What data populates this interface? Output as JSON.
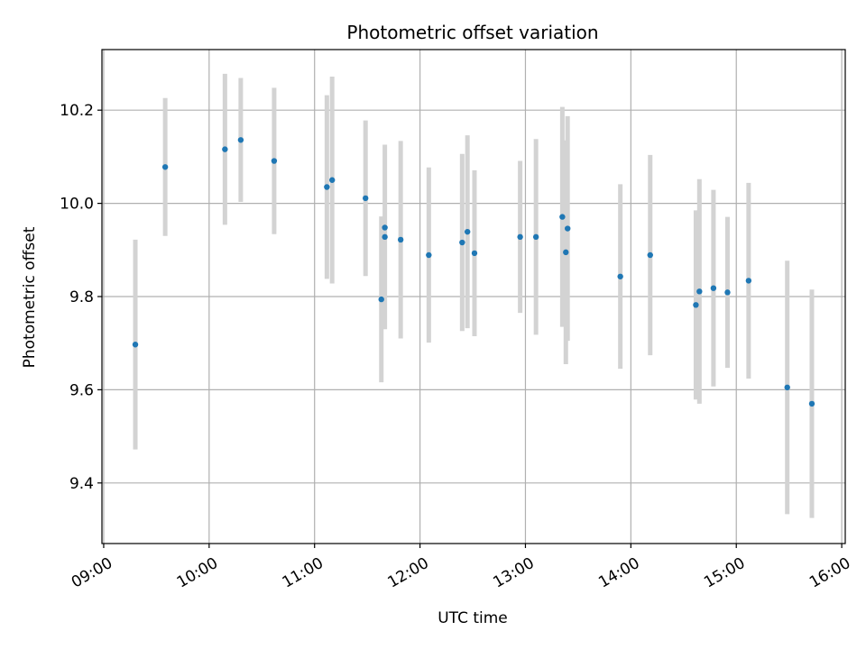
{
  "chart_data": {
    "type": "scatter",
    "title": "Photometric offset variation",
    "xlabel": "UTC time",
    "ylabel": "Photometric offset",
    "x_ticks": [
      "09:00",
      "10:00",
      "11:00",
      "12:00",
      "13:00",
      "14:00",
      "15:00",
      "16:00"
    ],
    "y_ticks": [
      9.4,
      9.6,
      9.8,
      10.0,
      10.2
    ],
    "xlim": [
      "08:59",
      "16:02"
    ],
    "ylim": [
      9.27,
      10.33
    ],
    "grid": true,
    "marker_color": "#1f77b4",
    "errorbar_color": "#d3d3d3",
    "points": [
      {
        "x": "09:18",
        "y": 9.697,
        "err": 0.225
      },
      {
        "x": "09:35",
        "y": 10.078,
        "err": 0.148
      },
      {
        "x": "10:09",
        "y": 10.116,
        "err": 0.162
      },
      {
        "x": "10:18",
        "y": 10.136,
        "err": 0.133
      },
      {
        "x": "10:37",
        "y": 10.091,
        "err": 0.157
      },
      {
        "x": "11:07",
        "y": 10.035,
        "err": 0.197
      },
      {
        "x": "11:10",
        "y": 10.05,
        "err": 0.222
      },
      {
        "x": "11:29",
        "y": 10.011,
        "err": 0.167
      },
      {
        "x": "11:38",
        "y": 9.794,
        "err": 0.178
      },
      {
        "x": "11:40",
        "y": 9.948,
        "err": 0.0
      },
      {
        "x": "11:40",
        "y": 9.928,
        "err": 0.198
      },
      {
        "x": "11:49",
        "y": 9.922,
        "err": 0.212
      },
      {
        "x": "12:05",
        "y": 9.889,
        "err": 0.188
      },
      {
        "x": "12:24",
        "y": 9.916,
        "err": 0.19
      },
      {
        "x": "12:27",
        "y": 9.939,
        "err": 0.207
      },
      {
        "x": "12:31",
        "y": 9.893,
        "err": 0.178
      },
      {
        "x": "12:57",
        "y": 9.928,
        "err": 0.163
      },
      {
        "x": "13:06",
        "y": 9.928,
        "err": 0.21
      },
      {
        "x": "13:21",
        "y": 9.971,
        "err": 0.236
      },
      {
        "x": "13:23",
        "y": 9.895,
        "err": 0.24
      },
      {
        "x": "13:24",
        "y": 9.946,
        "err": 0.241
      },
      {
        "x": "13:54",
        "y": 9.843,
        "err": 0.198
      },
      {
        "x": "14:11",
        "y": 9.889,
        "err": 0.215
      },
      {
        "x": "14:37",
        "y": 9.782,
        "err": 0.203
      },
      {
        "x": "14:39",
        "y": 9.811,
        "err": 0.241
      },
      {
        "x": "14:47",
        "y": 9.818,
        "err": 0.211
      },
      {
        "x": "14:55",
        "y": 9.809,
        "err": 0.162
      },
      {
        "x": "15:07",
        "y": 9.834,
        "err": 0.21
      },
      {
        "x": "15:29",
        "y": 9.605,
        "err": 0.272
      },
      {
        "x": "15:43",
        "y": 9.57,
        "err": 0.245
      }
    ]
  }
}
